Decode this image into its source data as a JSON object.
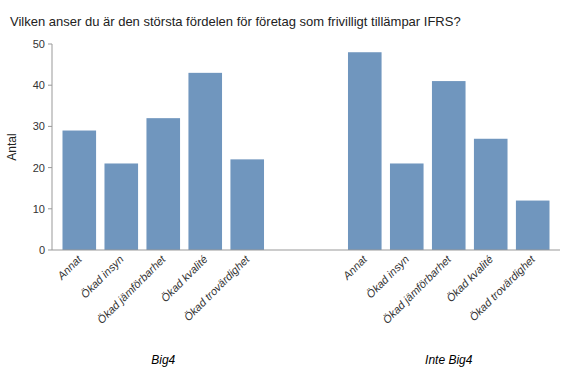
{
  "chart_data": {
    "type": "bar",
    "title": "Vilken anser du är den största fördelen för företag som frivilligt tillämpar IFRS?",
    "ylabel": "Antal",
    "color": "#7096be",
    "groups": [
      {
        "label": "Big4",
        "categories": [
          "Annat",
          "Ökad insyn",
          "Ökad jämförbarhet",
          "Ökad kvalité",
          "Ökad trovärdighet"
        ],
        "values": [
          29,
          21,
          32,
          43,
          22
        ]
      },
      {
        "label": "Inte Big4",
        "categories": [
          "Annat",
          "Ökad insyn",
          "Ökad jämförbarhet",
          "Ökad kvalité",
          "Ökad trovärdighet"
        ],
        "values": [
          48,
          21,
          41,
          27,
          12
        ]
      }
    ],
    "ylim": [
      0,
      50
    ],
    "yticks": [
      0,
      10,
      20,
      30,
      40,
      50
    ],
    "grid": false
  }
}
